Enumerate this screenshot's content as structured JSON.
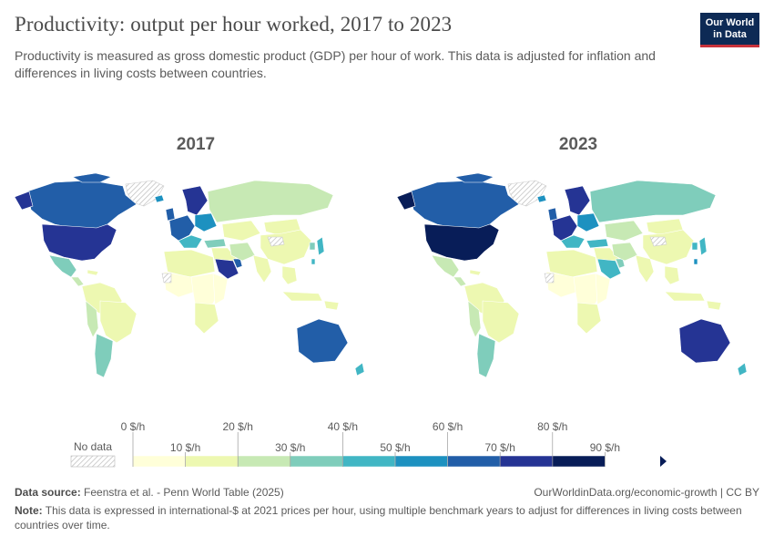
{
  "header": {
    "title": "Productivity: output per hour worked, 2017 to 2023",
    "subtitle": "Productivity is measured as gross domestic product (GDP) per hour of work. This data is adjusted for inflation and differences in living costs between countries."
  },
  "logo": {
    "line1": "Our World",
    "line2": "in Data"
  },
  "maps": [
    {
      "year": "2017"
    },
    {
      "year": "2023"
    }
  ],
  "legend": {
    "no_data_label": "No data",
    "upper_labels": [
      "0 $/h",
      "20 $/h",
      "40 $/h",
      "60 $/h",
      "80 $/h"
    ],
    "lower_labels": [
      "10 $/h",
      "30 $/h",
      "50 $/h",
      "70 $/h",
      "90 $/h"
    ],
    "colors": [
      "#ffffd9",
      "#edf8b1",
      "#c7e9b4",
      "#7fcdbb",
      "#41b6c4",
      "#1d91c0",
      "#225ea8",
      "#253494",
      "#081d58"
    ]
  },
  "footer": {
    "source_label": "Data source:",
    "source_text": "Feenstra et al. - Penn World Table (2025)",
    "link": "OurWorldinData.org/economic-growth | CC BY",
    "note_label": "Note:",
    "note_text": "This data is expressed in international-$ at 2021 prices per hour, using multiple benchmark years to adjust for differences in living costs between countries over time."
  }
}
